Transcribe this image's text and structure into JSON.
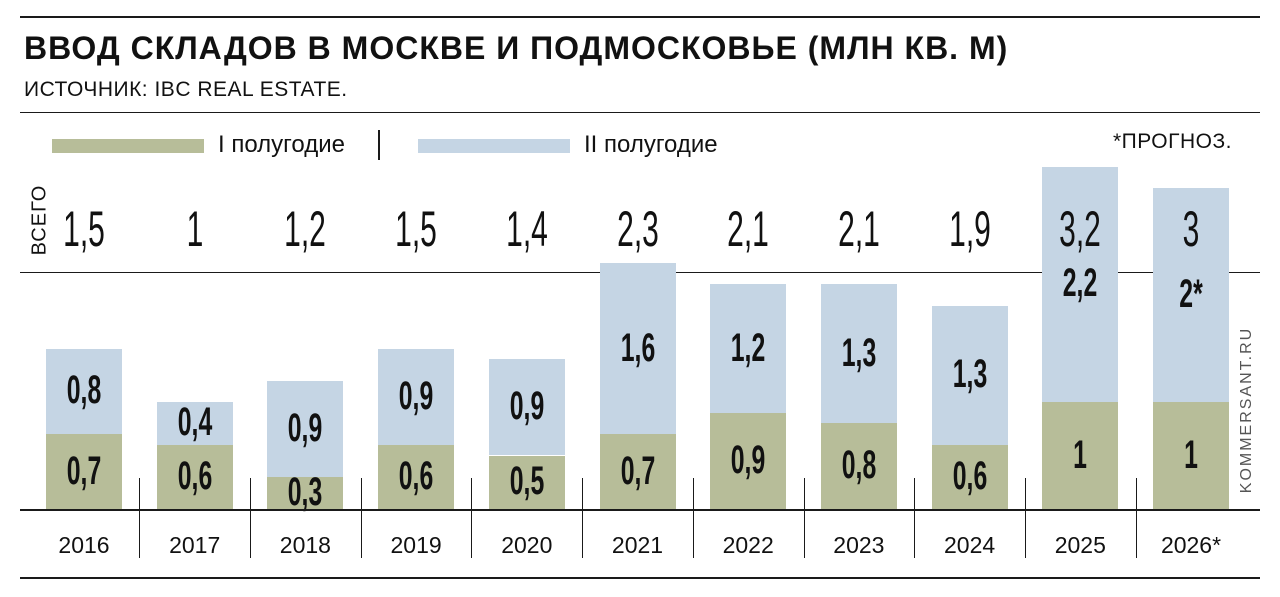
{
  "header": {
    "title": "ВВОД СКЛАДОВ В МОСКВЕ И ПОДМОСКОВЬЕ (МЛН КВ. М)",
    "source": "ИСТОЧНИК: IBC REAL ESTATE.",
    "forecast_note": "*ПРОГНОЗ.",
    "total_label": "ВСЕГО",
    "credit": "KOMMERSANT.RU"
  },
  "legend": [
    {
      "label": "I полугодие",
      "color": "#b7bd99"
    },
    {
      "label": "II полугодие",
      "color": "#c5d5e4"
    }
  ],
  "chart_data": {
    "type": "bar",
    "stacked": true,
    "title": "ВВОД СКЛАДОВ В МОСКВЕ И ПОДМОСКОВЬЕ (МЛН КВ. М)",
    "categories": [
      "2016",
      "2017",
      "2018",
      "2019",
      "2020",
      "2021",
      "2022",
      "2023",
      "2024",
      "2025",
      "2026*"
    ],
    "series": [
      {
        "name": "I полугодие",
        "color": "#b7bd99",
        "values": [
          0.7,
          0.6,
          0.3,
          0.6,
          0.5,
          0.7,
          0.9,
          0.8,
          0.6,
          1,
          1
        ],
        "labels": [
          "0,7",
          "0,6",
          "0,3",
          "0,6",
          "0,5",
          "0,7",
          "0,9",
          "0,8",
          "0,6",
          "1",
          "1"
        ]
      },
      {
        "name": "II полугодие",
        "color": "#c5d5e4",
        "values": [
          0.8,
          0.4,
          0.9,
          0.9,
          0.9,
          1.6,
          1.2,
          1.3,
          1.3,
          2.2,
          2
        ],
        "labels": [
          "0,8",
          "0,4",
          "0,9",
          "0,9",
          "0,9",
          "1,6",
          "1,2",
          "1,3",
          "1,3",
          "2,2",
          "2*"
        ]
      }
    ],
    "totals": [
      1.5,
      1,
      1.2,
      1.5,
      1.4,
      2.3,
      2.1,
      2.1,
      1.9,
      3.2,
      3
    ],
    "total_labels": [
      "1,5",
      "1",
      "1,2",
      "1,5",
      "1,4",
      "2,3",
      "2,1",
      "2,1",
      "1,9",
      "3,2",
      "3"
    ],
    "ylim": [
      0,
      3.2
    ],
    "grid": false,
    "legend_position": "top-left"
  }
}
